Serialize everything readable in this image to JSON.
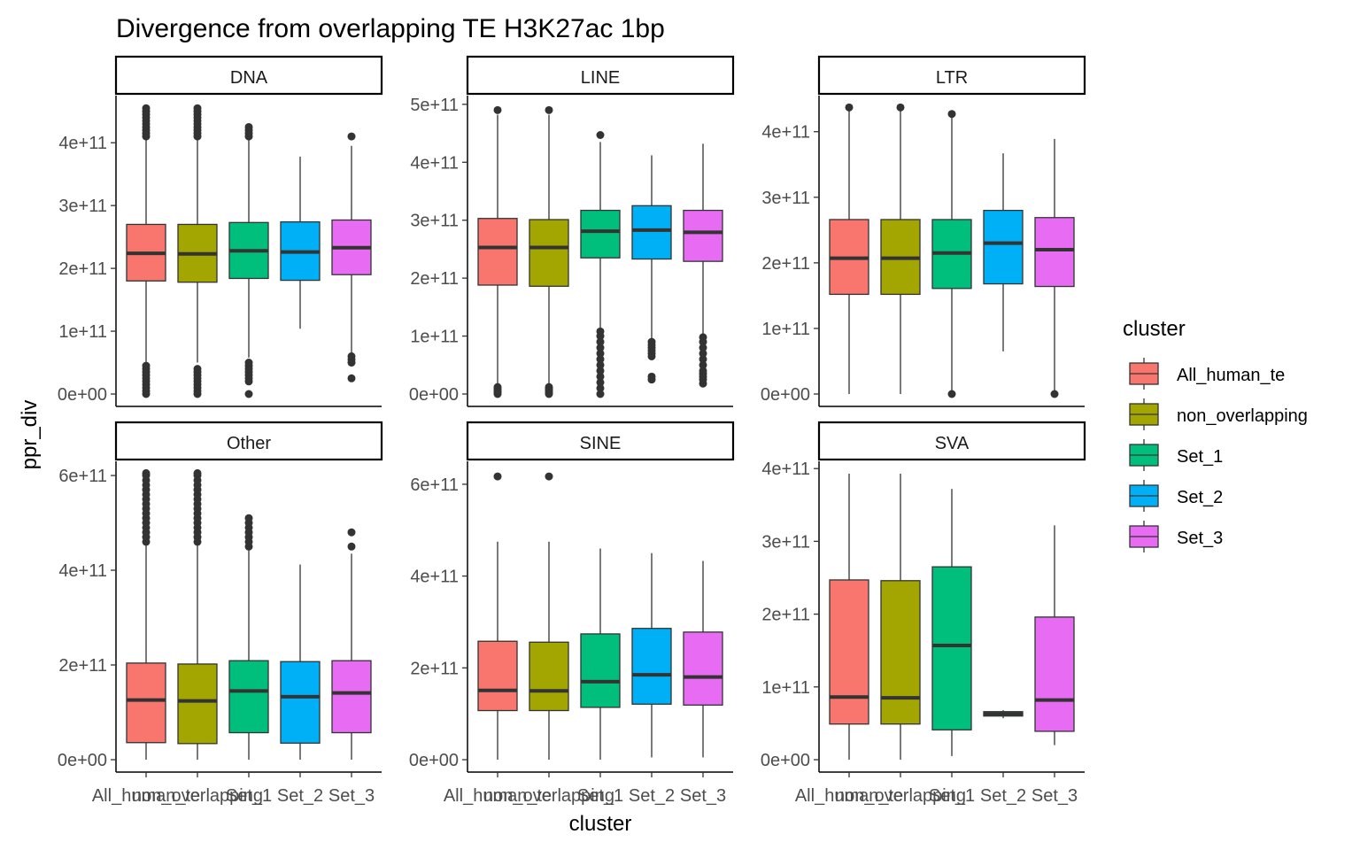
{
  "chart_data": {
    "type": "boxplot",
    "title": "Divergence from overlapping TE H3K27ac 1bp",
    "xlabel": "cluster",
    "ylabel": "ppr_div",
    "categories": [
      "All_human_te",
      "non_overlapping",
      "Set_1",
      "Set_2",
      "Set_3"
    ],
    "legend": {
      "title": "cluster",
      "position": "right",
      "items": [
        {
          "name": "All_human_te",
          "color": "#F8766D"
        },
        {
          "name": "non_overlapping",
          "color": "#A3A500"
        },
        {
          "name": "Set_1",
          "color": "#00BF7D"
        },
        {
          "name": "Set_2",
          "color": "#00B0F6"
        },
        {
          "name": "Set_3",
          "color": "#E76BF3"
        }
      ]
    },
    "panels": [
      {
        "name": "DNA",
        "ylim": [
          0,
          475000000000.0
        ],
        "yticks": [
          0,
          100000000000.0,
          200000000000.0,
          300000000000.0,
          400000000000.0
        ],
        "ytick_labels": [
          "0e+00",
          "1e+11",
          "2e+11",
          "3e+11",
          "4e+11"
        ],
        "boxes": [
          {
            "q1": 180000000000.0,
            "median": 224000000000.0,
            "q3": 270000000000.0,
            "lower": 50000000000.0,
            "upper": 405000000000.0,
            "outliers": [
              0,
              5000000000.0,
              10000000000.0,
              15000000000.0,
              20000000000.0,
              25000000000.0,
              30000000000.0,
              35000000000.0,
              40000000000.0,
              45000000000.0,
              410000000000.0,
              415000000000.0,
              420000000000.0,
              425000000000.0,
              430000000000.0,
              435000000000.0,
              440000000000.0,
              445000000000.0,
              450000000000.0,
              455000000000.0
            ]
          },
          {
            "q1": 178000000000.0,
            "median": 223000000000.0,
            "q3": 270000000000.0,
            "lower": 50000000000.0,
            "upper": 405000000000.0,
            "outliers": [
              0,
              5000000000.0,
              10000000000.0,
              15000000000.0,
              20000000000.0,
              25000000000.0,
              30000000000.0,
              35000000000.0,
              40000000000.0,
              410000000000.0,
              415000000000.0,
              420000000000.0,
              425000000000.0,
              430000000000.0,
              435000000000.0,
              440000000000.0,
              445000000000.0,
              450000000000.0,
              455000000000.0
            ]
          },
          {
            "q1": 184000000000.0,
            "median": 228000000000.0,
            "q3": 273000000000.0,
            "lower": 58000000000.0,
            "upper": 405000000000.0,
            "outliers": [
              0,
              20000000000.0,
              25000000000.0,
              30000000000.0,
              35000000000.0,
              40000000000.0,
              45000000000.0,
              50000000000.0,
              410000000000.0,
              415000000000.0,
              420000000000.0,
              425000000000.0
            ]
          },
          {
            "q1": 181000000000.0,
            "median": 226000000000.0,
            "q3": 274000000000.0,
            "lower": 104000000000.0,
            "upper": 378000000000.0,
            "outliers": []
          },
          {
            "q1": 190000000000.0,
            "median": 233000000000.0,
            "q3": 277000000000.0,
            "lower": 65000000000.0,
            "upper": 395000000000.0,
            "outliers": [
              25000000000.0,
              50000000000.0,
              55000000000.0,
              60000000000.0,
              410000000000.0
            ]
          }
        ]
      },
      {
        "name": "LINE",
        "ylim": [
          0,
          515000000000.0
        ],
        "yticks": [
          0,
          100000000000.0,
          200000000000.0,
          300000000000.0,
          400000000000.0,
          500000000000.0
        ],
        "ytick_labels": [
          "0e+00",
          "1e+11",
          "2e+11",
          "3e+11",
          "4e+11",
          "5e+11"
        ],
        "boxes": [
          {
            "q1": 188000000000.0,
            "median": 253000000000.0,
            "q3": 303000000000.0,
            "lower": 15000000000.0,
            "upper": 482000000000.0,
            "outliers": [
              0,
              3000000000.0,
              6000000000.0,
              9000000000.0,
              12000000000.0,
              490000000000.0
            ]
          },
          {
            "q1": 186000000000.0,
            "median": 253000000000.0,
            "q3": 301000000000.0,
            "lower": 15000000000.0,
            "upper": 482000000000.0,
            "outliers": [
              0,
              3000000000.0,
              6000000000.0,
              9000000000.0,
              12000000000.0,
              490000000000.0
            ]
          },
          {
            "q1": 235000000000.0,
            "median": 281000000000.0,
            "q3": 317000000000.0,
            "lower": 112000000000.0,
            "upper": 435000000000.0,
            "outliers": [
              0,
              10000000000.0,
              20000000000.0,
              30000000000.0,
              40000000000.0,
              50000000000.0,
              60000000000.0,
              70000000000.0,
              80000000000.0,
              90000000000.0,
              100000000000.0,
              108000000000.0,
              447000000000.0
            ]
          },
          {
            "q1": 233000000000.0,
            "median": 283000000000.0,
            "q3": 325000000000.0,
            "lower": 95000000000.0,
            "upper": 412000000000.0,
            "outliers": [
              25000000000.0,
              30000000000.0,
              65000000000.0,
              70000000000.0,
              75000000000.0,
              80000000000.0,
              85000000000.0,
              90000000000.0
            ]
          },
          {
            "q1": 229000000000.0,
            "median": 279000000000.0,
            "q3": 317000000000.0,
            "lower": 102000000000.0,
            "upper": 432000000000.0,
            "outliers": [
              18000000000.0,
              25000000000.0,
              30000000000.0,
              35000000000.0,
              40000000000.0,
              50000000000.0,
              60000000000.0,
              70000000000.0,
              80000000000.0,
              90000000000.0,
              98000000000.0
            ]
          }
        ]
      },
      {
        "name": "LTR",
        "ylim": [
          0,
          455000000000.0
        ],
        "yticks": [
          0,
          100000000000.0,
          200000000000.0,
          300000000000.0,
          400000000000.0
        ],
        "ytick_labels": [
          "0e+00",
          "1e+11",
          "2e+11",
          "3e+11",
          "4e+11"
        ],
        "boxes": [
          {
            "q1": 152000000000.0,
            "median": 207000000000.0,
            "q3": 266000000000.0,
            "lower": 0,
            "upper": 435000000000.0,
            "outliers": [
              437000000000.0
            ]
          },
          {
            "q1": 152000000000.0,
            "median": 207000000000.0,
            "q3": 266000000000.0,
            "lower": 0,
            "upper": 435000000000.0,
            "outliers": [
              437000000000.0
            ]
          },
          {
            "q1": 161000000000.0,
            "median": 215000000000.0,
            "q3": 266000000000.0,
            "lower": 5000000000.0,
            "upper": 422000000000.0,
            "outliers": [
              0,
              427000000000.0
            ]
          },
          {
            "q1": 168000000000.0,
            "median": 230000000000.0,
            "q3": 280000000000.0,
            "lower": 65000000000.0,
            "upper": 367000000000.0,
            "outliers": []
          },
          {
            "q1": 164000000000.0,
            "median": 220000000000.0,
            "q3": 269000000000.0,
            "lower": 5000000000.0,
            "upper": 389000000000.0,
            "outliers": [
              0
            ]
          }
        ]
      },
      {
        "name": "Other",
        "ylim": [
          0,
          630000000000.0
        ],
        "yticks": [
          0,
          200000000000.0,
          400000000000.0,
          600000000000.0
        ],
        "ytick_labels": [
          "0e+00",
          "2e+11",
          "4e+11",
          "6e+11"
        ],
        "boxes": [
          {
            "q1": 36000000000.0,
            "median": 126000000000.0,
            "q3": 204000000000.0,
            "lower": 0,
            "upper": 455000000000.0,
            "outliers": [
              460000000000.0,
              470000000000.0,
              480000000000.0,
              490000000000.0,
              500000000000.0,
              510000000000.0,
              520000000000.0,
              530000000000.0,
              540000000000.0,
              550000000000.0,
              560000000000.0,
              570000000000.0,
              580000000000.0,
              590000000000.0,
              600000000000.0,
              605000000000.0
            ]
          },
          {
            "q1": 34000000000.0,
            "median": 124000000000.0,
            "q3": 202000000000.0,
            "lower": 0,
            "upper": 455000000000.0,
            "outliers": [
              460000000000.0,
              470000000000.0,
              480000000000.0,
              490000000000.0,
              500000000000.0,
              510000000000.0,
              520000000000.0,
              530000000000.0,
              540000000000.0,
              550000000000.0,
              560000000000.0,
              570000000000.0,
              580000000000.0,
              590000000000.0,
              600000000000.0,
              605000000000.0
            ]
          },
          {
            "q1": 57000000000.0,
            "median": 145000000000.0,
            "q3": 209000000000.0,
            "lower": 0,
            "upper": 445000000000.0,
            "outliers": [
              450000000000.0,
              460000000000.0,
              470000000000.0,
              480000000000.0,
              490000000000.0,
              500000000000.0,
              510000000000.0
            ]
          },
          {
            "q1": 35000000000.0,
            "median": 133000000000.0,
            "q3": 207000000000.0,
            "lower": 0,
            "upper": 412000000000.0,
            "outliers": []
          },
          {
            "q1": 57000000000.0,
            "median": 141000000000.0,
            "q3": 209000000000.0,
            "lower": 0,
            "upper": 435000000000.0,
            "outliers": [
              450000000000.0,
              480000000000.0
            ]
          }
        ]
      },
      {
        "name": "SINE",
        "ylim": [
          0,
          650000000000.0
        ],
        "yticks": [
          0,
          200000000000.0,
          400000000000.0,
          600000000000.0
        ],
        "ytick_labels": [
          "0e+00",
          "2e+11",
          "4e+11",
          "6e+11"
        ],
        "boxes": [
          {
            "q1": 107000000000.0,
            "median": 151000000000.0,
            "q3": 258000000000.0,
            "lower": 0,
            "upper": 475000000000.0,
            "outliers": [
              617000000000.0
            ]
          },
          {
            "q1": 107000000000.0,
            "median": 150000000000.0,
            "q3": 256000000000.0,
            "lower": 0,
            "upper": 475000000000.0,
            "outliers": [
              617000000000.0
            ]
          },
          {
            "q1": 114000000000.0,
            "median": 170000000000.0,
            "q3": 274000000000.0,
            "lower": 0,
            "upper": 460000000000.0,
            "outliers": []
          },
          {
            "q1": 121000000000.0,
            "median": 185000000000.0,
            "q3": 286000000000.0,
            "lower": 5000000000.0,
            "upper": 450000000000.0,
            "outliers": []
          },
          {
            "q1": 119000000000.0,
            "median": 180000000000.0,
            "q3": 278000000000.0,
            "lower": 5000000000.0,
            "upper": 433000000000.0,
            "outliers": []
          }
        ]
      },
      {
        "name": "SVA",
        "ylim": [
          0,
          410000000000.0
        ],
        "yticks": [
          0,
          100000000000.0,
          200000000000.0,
          300000000000.0,
          400000000000.0
        ],
        "ytick_labels": [
          "0e+00",
          "1e+11",
          "2e+11",
          "3e+11",
          "4e+11"
        ],
        "boxes": [
          {
            "q1": 49000000000.0,
            "median": 86000000000.0,
            "q3": 247000000000.0,
            "lower": 0,
            "upper": 393000000000.0,
            "outliers": []
          },
          {
            "q1": 49000000000.0,
            "median": 85000000000.0,
            "q3": 246000000000.0,
            "lower": 0,
            "upper": 393000000000.0,
            "outliers": []
          },
          {
            "q1": 41000000000.0,
            "median": 157000000000.0,
            "q3": 265000000000.0,
            "lower": 5000000000.0,
            "upper": 372000000000.0,
            "outliers": []
          },
          {
            "q1": 60000000000.0,
            "median": 63000000000.0,
            "q3": 66000000000.0,
            "lower": 57000000000.0,
            "upper": 68000000000.0,
            "outliers": []
          },
          {
            "q1": 39000000000.0,
            "median": 82000000000.0,
            "q3": 196000000000.0,
            "lower": 20000000000.0,
            "upper": 322000000000.0,
            "outliers": []
          }
        ]
      }
    ]
  }
}
